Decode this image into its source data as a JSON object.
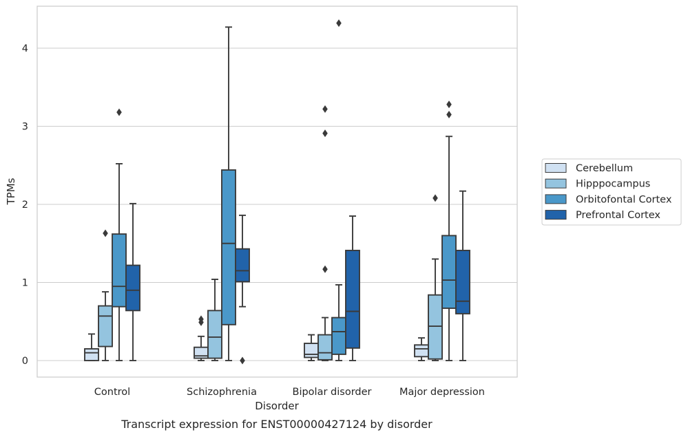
{
  "chart_data": {
    "type": "box",
    "title": "",
    "xlabel": "Disorder",
    "ylabel": "TPMs",
    "caption": "Transcript expression for ENST00000427124 by disorder",
    "ylim": [
      -0.2,
      4.55
    ],
    "yticks": [
      0,
      1,
      2,
      3,
      4
    ],
    "ytick_labels": [
      "0",
      "1",
      "2",
      "3",
      "4"
    ],
    "grid": "horizontal",
    "legend_position": "right",
    "categories": [
      "Control",
      "Schizophrenia",
      "Bipolar disorder",
      "Major depression"
    ],
    "series": [
      {
        "name": "Cerebellum",
        "color": "#d0e1f2",
        "boxes": [
          {
            "whislo": 0.0,
            "q1": 0.0,
            "med": 0.1,
            "q3": 0.15,
            "whishi": 0.34,
            "fliers": []
          },
          {
            "whislo": 0.0,
            "q1": 0.03,
            "med": 0.06,
            "q3": 0.17,
            "whishi": 0.31,
            "fliers": [
              0.49,
              0.53
            ]
          },
          {
            "whislo": 0.0,
            "q1": 0.04,
            "med": 0.08,
            "q3": 0.22,
            "whishi": 0.33,
            "fliers": []
          },
          {
            "whislo": 0.0,
            "q1": 0.05,
            "med": 0.15,
            "q3": 0.2,
            "whishi": 0.29,
            "fliers": []
          }
        ]
      },
      {
        "name": "Hipppocampus",
        "color": "#94c4df",
        "boxes": [
          {
            "whislo": 0.0,
            "q1": 0.18,
            "med": 0.57,
            "q3": 0.7,
            "whishi": 0.88,
            "fliers": [
              1.63
            ]
          },
          {
            "whislo": 0.0,
            "q1": 0.03,
            "med": 0.3,
            "q3": 0.64,
            "whishi": 1.04,
            "fliers": []
          },
          {
            "whislo": 0.0,
            "q1": 0.01,
            "med": 0.1,
            "q3": 0.33,
            "whishi": 0.55,
            "fliers": [
              1.17,
              2.91,
              3.22
            ]
          },
          {
            "whislo": 0.0,
            "q1": 0.02,
            "med": 0.44,
            "q3": 0.84,
            "whishi": 1.3,
            "fliers": [
              2.08
            ]
          }
        ]
      },
      {
        "name": "Orbitofontal Cortex",
        "color": "#4a98c9",
        "boxes": [
          {
            "whislo": 0.0,
            "q1": 0.69,
            "med": 0.95,
            "q3": 1.62,
            "whishi": 2.52,
            "fliers": [
              3.18
            ]
          },
          {
            "whislo": 0.0,
            "q1": 0.46,
            "med": 1.5,
            "q3": 2.44,
            "whishi": 4.27,
            "fliers": []
          },
          {
            "whislo": 0.0,
            "q1": 0.08,
            "med": 0.37,
            "q3": 0.55,
            "whishi": 0.97,
            "fliers": [
              4.32
            ]
          },
          {
            "whislo": 0.0,
            "q1": 0.67,
            "med": 1.03,
            "q3": 1.6,
            "whishi": 2.87,
            "fliers": [
              3.15,
              3.28
            ]
          }
        ]
      },
      {
        "name": "Prefrontal Cortex",
        "color": "#2163aa",
        "boxes": [
          {
            "whislo": 0.0,
            "q1": 0.64,
            "med": 0.9,
            "q3": 1.22,
            "whishi": 2.01,
            "fliers": []
          },
          {
            "whislo": 0.69,
            "q1": 1.01,
            "med": 1.15,
            "q3": 1.43,
            "whishi": 1.86,
            "fliers": [
              0.0
            ]
          },
          {
            "whislo": 0.0,
            "q1": 0.16,
            "med": 0.63,
            "q3": 1.41,
            "whishi": 1.85,
            "fliers": []
          },
          {
            "whislo": 0.0,
            "q1": 0.6,
            "med": 0.76,
            "q3": 1.41,
            "whishi": 2.17,
            "fliers": []
          }
        ]
      }
    ]
  }
}
